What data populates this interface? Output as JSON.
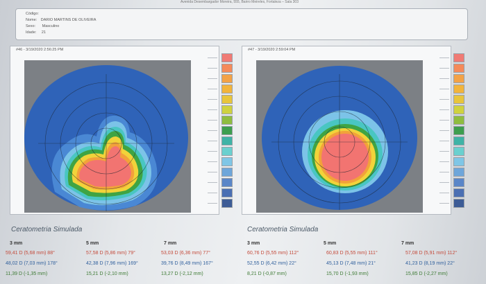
{
  "header": {
    "clinic_line": "Avenida Desembargador Moreira, 555, Bairro Meireles, Fortaleza – Sala 303"
  },
  "patient": {
    "code_label": "Código:",
    "name_label": "Nome:",
    "name": "DARIO MARTINS DE OLIVEIRA",
    "sex_label": "Sexo:",
    "sex": "Masculino",
    "age_label": "Idade:",
    "age": "21"
  },
  "exams": [
    {
      "label": "#46 - 3/19/2020 2:56:25 PM"
    },
    {
      "label": "#47 - 3/19/2020 2:59:04 PM"
    }
  ],
  "scale_colors": [
    "#f07a74",
    "#f58a5a",
    "#f3a247",
    "#f2b43c",
    "#e8c53c",
    "#cfd23f",
    "#8fbd3f",
    "#3d9e4e",
    "#3fb3a6",
    "#6ad0cf",
    "#7fc6e6",
    "#6ea6da",
    "#5a86c8",
    "#4a6fb3",
    "#3d5c96"
  ],
  "topo_colors": {
    "dark_blue": "#2f63b8",
    "mid_blue": "#4a88d4",
    "light_blue": "#7cc3e8",
    "cyan": "#49c6c2",
    "green": "#3fa443",
    "yellow": "#f1d33a",
    "orange": "#f2a23a",
    "pink": "#f27471"
  },
  "sections": {
    "title": "Ceratometria Simulada",
    "columns": [
      "3 mm",
      "5 mm",
      "7 mm"
    ]
  },
  "left_values": {
    "steep": [
      "59,41 D (5,68 mm) 88°",
      "57,58 D (5,86 mm) 79°",
      "53,03 D (6,36 mm) 77°"
    ],
    "flat": [
      "48,02 D (7,03 mm) 178°",
      "42,38 D (7,96 mm) 169°",
      "39,76 D (8,49 mm) 167°"
    ],
    "cyl": [
      "11,39 D (-1,35 mm)",
      "15,21 D (-2,10 mm)",
      "13,27 D (-2,12 mm)"
    ]
  },
  "right_values": {
    "steep": [
      "60,76 D (5,55 mm) 112°",
      "60,83 D (5,55 mm) 111°",
      "57,08 D (5,91 mm) 112°"
    ],
    "flat": [
      "52,55 D (6,42 mm) 22°",
      "45,13 D (7,48 mm) 21°",
      "41,23 D (8,19 mm) 22°"
    ],
    "cyl": [
      "8,21 D (-0,87 mm)",
      "15,70 D (-1,93 mm)",
      "15,85 D (-2,27 mm)"
    ]
  }
}
